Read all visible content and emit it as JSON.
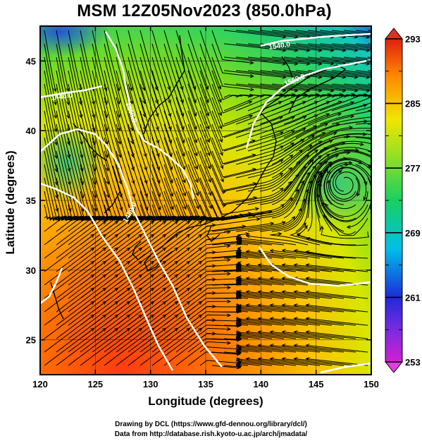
{
  "title": "MSM 12Z05Nov2023 (850.0hPa)",
  "x_axis": {
    "label": "Longitude (degrees)",
    "range": [
      120,
      150
    ],
    "ticks": [
      "120",
      "125",
      "130",
      "135",
      "140",
      "145",
      "150"
    ]
  },
  "y_axis": {
    "label": "Latitude  (degrees)",
    "range": [
      22.5,
      47.5
    ],
    "ticks": [
      "25",
      "30",
      "35",
      "40",
      "45"
    ]
  },
  "colorbar": {
    "range": [
      253,
      293
    ],
    "ticks": [
      "253",
      "261",
      "269",
      "277",
      "285",
      "293"
    ],
    "colors": [
      "#d020d0",
      "#8a2be2",
      "#1d2bd8",
      "#00c8e8",
      "#18d060",
      "#90e020",
      "#f0e800",
      "#ff9a00",
      "#ff4020",
      "#e02010"
    ]
  },
  "contours": {
    "levels": [
      "1440.0",
      "1460.0",
      "1480.0",
      "1500.0",
      "1520.0",
      "1540.0",
      "1560.0"
    ],
    "color": "#ffffff"
  },
  "field": "temperature (K) shaded, geopotential height (m) contours, wind streamlines",
  "credits": {
    "line1": "Drawing by DCL (https://www.gfd-dennou.org/library/dcl/)",
    "line2": "Data from http://database.rish.kyoto-u.ac.jp/arch/jmadata/"
  }
}
